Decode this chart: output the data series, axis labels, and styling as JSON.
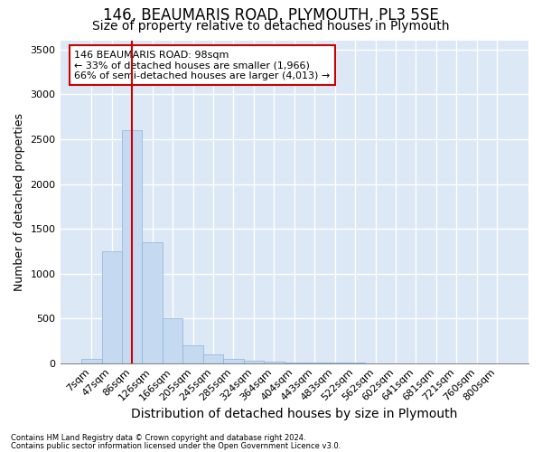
{
  "title_line1": "146, BEAUMARIS ROAD, PLYMOUTH, PL3 5SE",
  "title_line2": "Size of property relative to detached houses in Plymouth",
  "xlabel": "Distribution of detached houses by size in Plymouth",
  "ylabel": "Number of detached properties",
  "bar_labels": [
    "7sqm",
    "47sqm",
    "86sqm",
    "126sqm",
    "166sqm",
    "205sqm",
    "245sqm",
    "285sqm",
    "324sqm",
    "364sqm",
    "404sqm",
    "443sqm",
    "483sqm",
    "522sqm",
    "562sqm",
    "602sqm",
    "641sqm",
    "681sqm",
    "721sqm",
    "760sqm",
    "800sqm"
  ],
  "bar_values": [
    50,
    1250,
    2600,
    1350,
    500,
    200,
    100,
    50,
    30,
    20,
    10,
    5,
    3,
    2,
    1,
    1,
    1,
    0,
    0,
    0,
    0
  ],
  "bar_color": "#c5d9f0",
  "bar_edge_color": "#8ab4d8",
  "vline_x_index": 2.0,
  "vline_color": "#cc0000",
  "annotation_text": "146 BEAUMARIS ROAD: 98sqm\n← 33% of detached houses are smaller (1,966)\n66% of semi-detached houses are larger (4,013) →",
  "annotation_box_facecolor": "#ffffff",
  "annotation_box_edgecolor": "#cc0000",
  "footer_line1": "Contains HM Land Registry data © Crown copyright and database right 2024.",
  "footer_line2": "Contains public sector information licensed under the Open Government Licence v3.0.",
  "fig_facecolor": "#ffffff",
  "ax_facecolor": "#dce8f5",
  "grid_color": "#ffffff",
  "ylim": [
    0,
    3600
  ],
  "yticks": [
    0,
    500,
    1000,
    1500,
    2000,
    2500,
    3000,
    3500
  ],
  "title_fontsize1": 12,
  "title_fontsize2": 10,
  "ylabel_fontsize": 9,
  "xlabel_fontsize": 10,
  "tick_fontsize": 8,
  "annot_fontsize": 8
}
